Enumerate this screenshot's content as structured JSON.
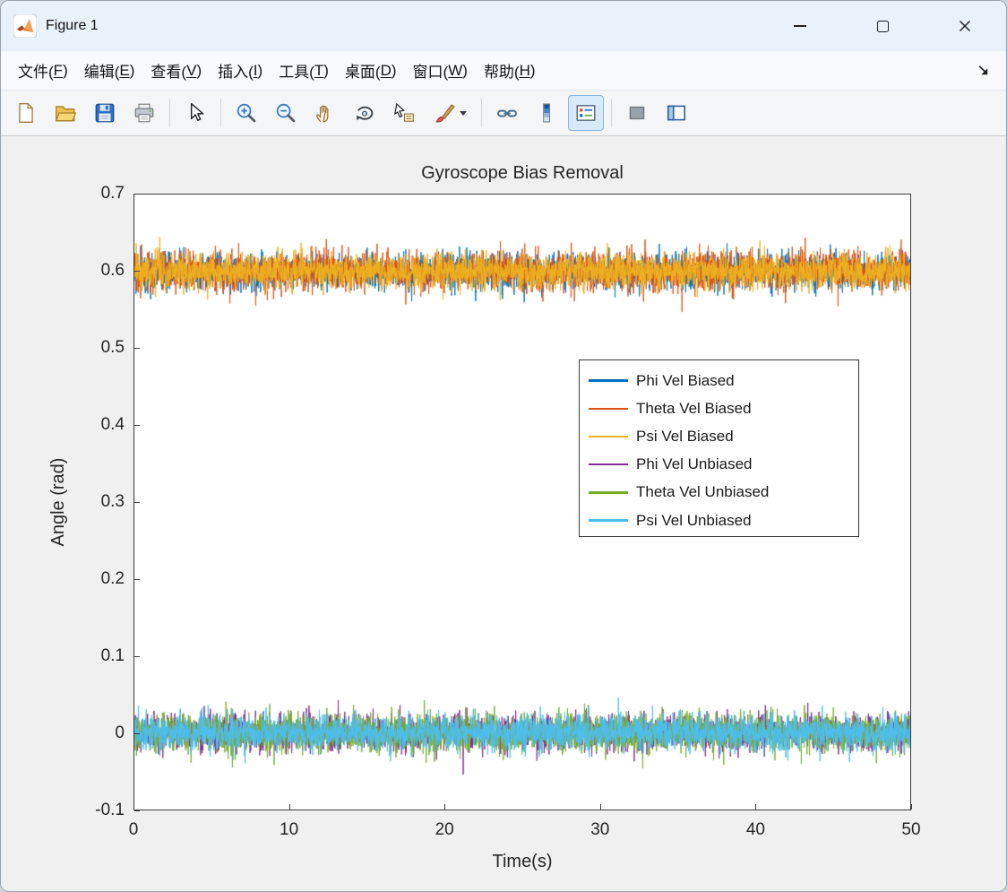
{
  "window": {
    "title": "Figure 1"
  },
  "titlebar": {
    "icons": [
      "matlab-icon",
      "minimize-icon",
      "maximize-icon",
      "close-icon"
    ]
  },
  "menu": {
    "items": [
      {
        "id": "file",
        "text": "文件",
        "key": "F"
      },
      {
        "id": "edit",
        "text": "编辑",
        "key": "E"
      },
      {
        "id": "view",
        "text": "查看",
        "key": "V"
      },
      {
        "id": "insert",
        "text": "插入",
        "key": "I"
      },
      {
        "id": "tools",
        "text": "工具",
        "key": "T"
      },
      {
        "id": "desktop",
        "text": "桌面",
        "key": "D"
      },
      {
        "id": "window",
        "text": "窗口",
        "key": "W"
      },
      {
        "id": "help",
        "text": "帮助",
        "key": "H"
      }
    ],
    "dock_icon": "dock-figure-icon"
  },
  "toolbar": {
    "items": [
      {
        "icon": "new-figure-icon"
      },
      {
        "icon": "open-file-icon"
      },
      {
        "icon": "save-figure-icon"
      },
      {
        "icon": "print-figure-icon"
      },
      {
        "separator": true
      },
      {
        "icon": "edit-plot-icon"
      },
      {
        "separator": true
      },
      {
        "icon": "zoom-in-icon"
      },
      {
        "icon": "zoom-out-icon"
      },
      {
        "icon": "pan-icon"
      },
      {
        "icon": "rotate-3d-icon"
      },
      {
        "icon": "data-cursor-icon"
      },
      {
        "icon": "brush-icon",
        "dropdown": true
      },
      {
        "separator": true
      },
      {
        "icon": "link-plots-icon"
      },
      {
        "icon": "insert-colorbar-icon"
      },
      {
        "icon": "insert-legend-icon",
        "active": true
      },
      {
        "separator": true
      },
      {
        "icon": "hide-plot-tools-icon"
      },
      {
        "icon": "show-plot-tools-icon"
      }
    ]
  },
  "chart_data": {
    "type": "line",
    "title": "Gyroscope Bias Removal",
    "xlabel": "Time(s)",
    "ylabel": "Angle (rad)",
    "xlim": [
      0,
      50
    ],
    "ylim": [
      -0.1,
      0.7
    ],
    "grid": false,
    "legend_position": "right-center",
    "xticks": [
      {
        "v": 0,
        "label": "0"
      },
      {
        "v": 10,
        "label": "10"
      },
      {
        "v": 20,
        "label": "20"
      },
      {
        "v": 30,
        "label": "30"
      },
      {
        "v": 40,
        "label": "40"
      },
      {
        "v": 50,
        "label": "50"
      }
    ],
    "yticks": [
      {
        "v": -0.1,
        "label": "-0.1"
      },
      {
        "v": 0,
        "label": "0"
      },
      {
        "v": 0.1,
        "label": "0.1"
      },
      {
        "v": 0.2,
        "label": "0.2"
      },
      {
        "v": 0.3,
        "label": "0.3"
      },
      {
        "v": 0.4,
        "label": "0.4"
      },
      {
        "v": 0.5,
        "label": "0.5"
      },
      {
        "v": 0.6,
        "label": "0.6"
      },
      {
        "v": 0.7,
        "label": "0.7"
      }
    ],
    "points_per_series": 3000,
    "series": [
      {
        "name": "Phi Vel Biased",
        "color": "#0072BD",
        "mean": 0.6,
        "noise_sigma": 0.012
      },
      {
        "name": "Theta Vel Biased",
        "color": "#D95319",
        "mean": 0.6,
        "noise_sigma": 0.013
      },
      {
        "name": "Psi Vel Biased",
        "color": "#EDB120",
        "mean": 0.6,
        "noise_sigma": 0.0115
      },
      {
        "name": "Phi Vel Unbiased",
        "color": "#7E2F8E",
        "mean": 0.0,
        "noise_sigma": 0.012
      },
      {
        "name": "Theta Vel Unbiased",
        "color": "#77AC30",
        "mean": 0.0,
        "noise_sigma": 0.013
      },
      {
        "name": "Psi Vel Unbiased",
        "color": "#4DBEEE",
        "mean": 0.0,
        "noise_sigma": 0.0115
      }
    ]
  }
}
